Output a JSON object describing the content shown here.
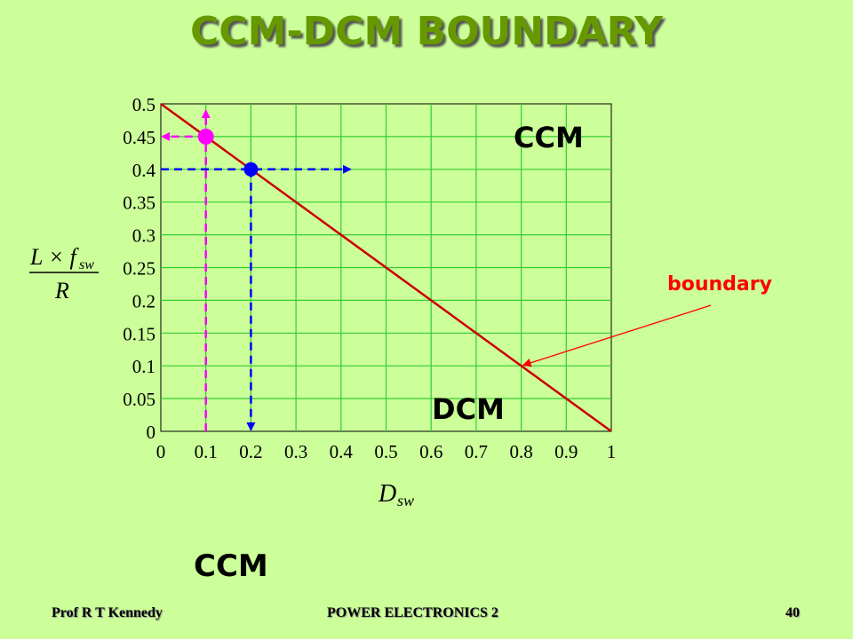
{
  "slide": {
    "title": "CCM-DCM BOUNDARY",
    "footer_left": "Prof R T Kennedy",
    "footer_center": "POWER ELECTRONICS 2",
    "footer_right": "40",
    "bottom_label": "CCM"
  },
  "colors": {
    "background": "#ccff99",
    "title": "#669900",
    "grid": "#33cc33",
    "boundary_line": "#cc0000",
    "magenta": "#ff00ff",
    "blue": "#0000ff",
    "annotation": "#ff0000"
  },
  "chart_data": {
    "type": "line",
    "x": [
      0,
      1
    ],
    "series": [
      {
        "values": [
          0.5,
          0
        ]
      }
    ],
    "xlim": [
      0,
      1
    ],
    "ylim": [
      0,
      0.5
    ],
    "x_ticks": [
      0,
      0.1,
      0.2,
      0.3,
      0.4,
      0.5,
      0.6,
      0.7,
      0.8,
      0.9,
      1
    ],
    "x_tick_labels": [
      "0",
      "0.1",
      "0.2",
      "0.3",
      "0.4",
      "0.5",
      "0.6",
      "0.7",
      "0.8",
      "0.9",
      "1"
    ],
    "y_ticks": [
      0,
      0.05,
      0.1,
      0.15,
      0.2,
      0.25,
      0.3,
      0.35,
      0.4,
      0.45,
      0.5
    ],
    "y_tick_labels": [
      "0",
      "0.05",
      "0.1",
      "0.15",
      "0.2",
      "0.25",
      "0.3",
      "0.35",
      "0.4",
      "0.45",
      "0.5"
    ],
    "xlabel_main": "D",
    "xlabel_sub": "sw",
    "ylabel_numerator": "L × f",
    "ylabel_numerator_sub": "sw",
    "ylabel_denominator": "R",
    "grid": true,
    "region_labels": {
      "upper": "CCM",
      "lower": "DCM"
    },
    "annotation": {
      "text": "boundary",
      "point": [
        0.8,
        0.1
      ]
    },
    "highlighted_points": [
      {
        "x": 0.1,
        "y": 0.45,
        "color": "magenta"
      },
      {
        "x": 0.2,
        "y": 0.4,
        "color": "blue"
      }
    ]
  }
}
